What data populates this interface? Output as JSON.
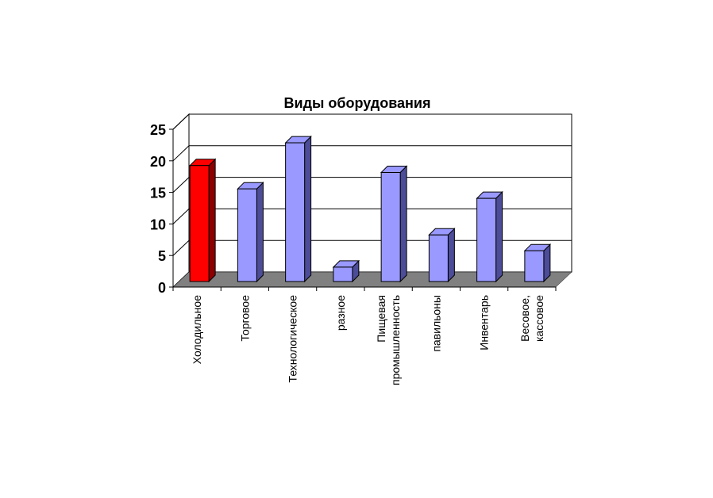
{
  "chart_data": {
    "type": "bar",
    "title": "Виды оборудования",
    "xlabel": "",
    "ylabel": "",
    "categories": [
      "Холодильное",
      "Торговое",
      "Технологическое",
      "разное",
      "Пищевая промышленность",
      "павильоны",
      "Инвентарь",
      "Весовое, кассовое"
    ],
    "category_lines": [
      [
        "Холодильное"
      ],
      [
        "Торговое"
      ],
      [
        "Технологическое"
      ],
      [
        "разное"
      ],
      [
        "Пищевая",
        "промышленность"
      ],
      [
        "павильоны"
      ],
      [
        "Инвентарь"
      ],
      [
        "Весовое,",
        "кассовое"
      ]
    ],
    "values": [
      18.5,
      14.8,
      22.1,
      2.4,
      17.4,
      7.5,
      13.3,
      5.0
    ],
    "ylim": [
      0,
      25
    ],
    "yticks": [
      "0",
      "5",
      "10",
      "15",
      "20",
      "25"
    ],
    "grid": true,
    "legend": "none",
    "style": "3d-column",
    "colors": {
      "highlight": "#ff0000",
      "highlight_side": "#8b0000",
      "bar": "#9999ff",
      "bar_side": "#4c4c99",
      "floor": "#808080"
    },
    "highlight_index": 0
  }
}
